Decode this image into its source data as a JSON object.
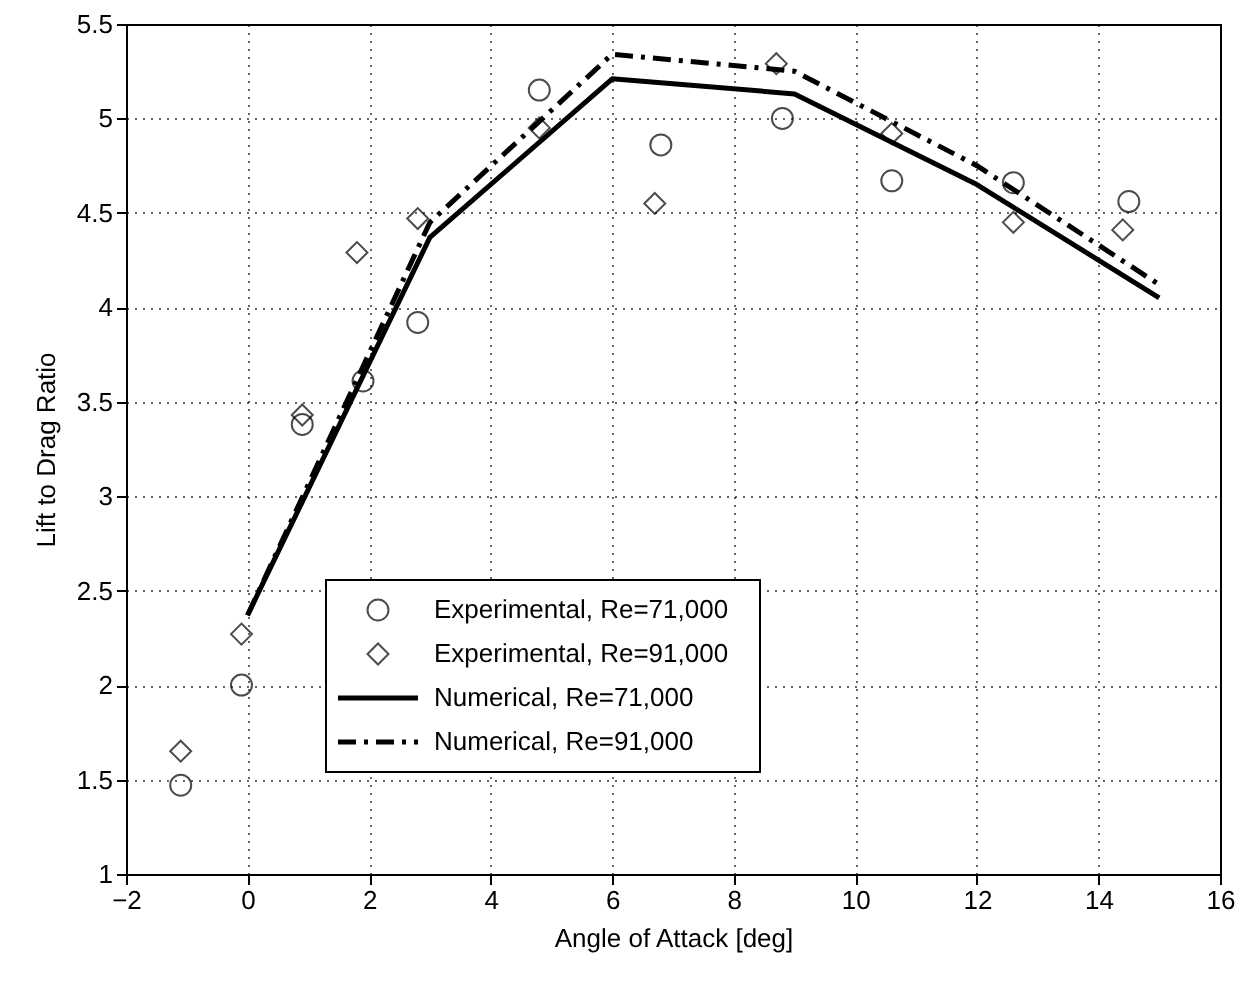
{
  "chart_data": {
    "type": "scatter",
    "xlabel": "Angle of Attack [deg]",
    "ylabel": "Lift to Drag Ratio",
    "xlim": [
      -2,
      16
    ],
    "xticks": [
      -2,
      0,
      2,
      4,
      6,
      8,
      10,
      12,
      14,
      16
    ],
    "ylim": [
      1,
      5.5
    ],
    "yticks": [
      1,
      1.5,
      2,
      2.5,
      3,
      3.5,
      4,
      4.5,
      5,
      5.5
    ],
    "grid": true,
    "legend": "bottom",
    "series": [
      {
        "name": "Experimental, Re=71,000",
        "marker": "circle",
        "color": "#000000",
        "x": [
          -1.1,
          -0.1,
          0.9,
          1.9,
          2.8,
          4.8,
          6.8,
          8.8,
          10.6,
          12.6,
          14.5
        ],
        "values": [
          1.47,
          2.0,
          3.38,
          3.61,
          3.92,
          5.15,
          4.86,
          5.0,
          4.67,
          4.66,
          4.56
        ]
      },
      {
        "name": "Experimental, Re=91,000",
        "marker": "diamond",
        "color": "#000000",
        "x": [
          -1.1,
          -0.1,
          0.9,
          1.8,
          2.8,
          4.8,
          6.7,
          8.7,
          10.6,
          12.6,
          14.4
        ],
        "values": [
          1.65,
          2.27,
          3.43,
          4.29,
          4.47,
          4.95,
          4.55,
          5.29,
          4.92,
          4.45,
          4.41
        ]
      },
      {
        "name": "Numerical, Re=71,000",
        "type": "line",
        "line_style": "solid",
        "color": "#000000",
        "x": [
          0,
          3,
          6,
          9,
          12,
          15
        ],
        "values": [
          2.37,
          4.37,
          5.21,
          5.13,
          4.65,
          4.05
        ]
      },
      {
        "name": "Numerical, Re=91,000",
        "type": "line",
        "line_style": "dashed",
        "color": "#000000",
        "x": [
          0,
          3,
          6,
          9,
          12,
          15
        ],
        "values": [
          2.37,
          4.45,
          5.34,
          5.25,
          4.75,
          4.12
        ]
      }
    ]
  }
}
